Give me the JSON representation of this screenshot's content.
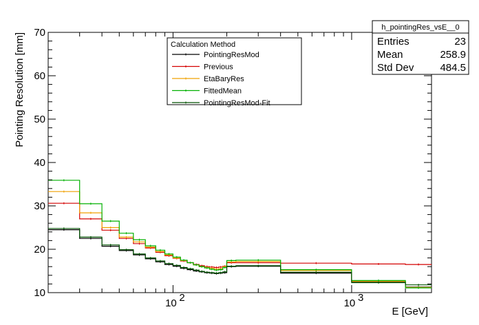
{
  "chart_data": {
    "type": "line",
    "xlabel": "E [GeV]",
    "ylabel": "Pointing Resolution [mm]",
    "xscale": "log",
    "xlim": [
      20,
      2800
    ],
    "ylim": [
      10,
      70
    ],
    "grid": false,
    "yticks": [
      "10",
      "20",
      "30",
      "40",
      "50",
      "60",
      "70"
    ],
    "xticks": [
      {
        "value": 100,
        "base": "10",
        "exp": "2"
      },
      {
        "value": 1000,
        "base": "10",
        "exp": "3"
      }
    ],
    "bin_edges": [
      20,
      30,
      40,
      50,
      60,
      70,
      80,
      90,
      100,
      110,
      120,
      130,
      140,
      150,
      160,
      170,
      180,
      190,
      200,
      225,
      400,
      1000,
      2000,
      2800
    ],
    "legend": {
      "title": "Calculation Method",
      "position": "top-center"
    },
    "series": [
      {
        "name": "PointingResMod",
        "color": "#000000",
        "values": [
          24.5,
          22.5,
          20.7,
          19.7,
          18.7,
          17.8,
          17.1,
          16.5,
          16.1,
          15.6,
          15.3,
          15.0,
          14.8,
          14.6,
          14.5,
          14.4,
          14.5,
          14.6,
          16.0,
          16.1,
          14.5,
          12.5,
          11.3
        ]
      },
      {
        "name": "Previous",
        "color": "#d40000",
        "values": [
          30.6,
          27.0,
          24.4,
          22.5,
          21.3,
          20.3,
          19.3,
          18.5,
          17.9,
          17.3,
          16.9,
          16.5,
          16.2,
          16.0,
          15.9,
          15.8,
          15.9,
          16.1,
          16.9,
          16.9,
          16.8,
          16.6,
          16.5
        ]
      },
      {
        "name": "EtaBaryRes",
        "color": "#f0a000",
        "values": [
          33.3,
          28.4,
          25.0,
          22.8,
          21.7,
          20.5,
          19.5,
          18.7,
          18.0,
          17.4,
          16.9,
          16.4,
          16.0,
          15.8,
          15.6,
          15.4,
          15.5,
          16.0,
          17.1,
          17.2,
          15.1,
          12.6,
          11.2
        ]
      },
      {
        "name": "FittedMean",
        "color": "#00b000",
        "values": [
          35.9,
          30.5,
          26.5,
          23.7,
          22.2,
          20.8,
          19.8,
          18.9,
          18.2,
          17.5,
          16.9,
          16.4,
          16.0,
          15.7,
          15.4,
          15.2,
          15.3,
          15.8,
          17.4,
          17.5,
          15.3,
          12.8,
          11.1
        ]
      },
      {
        "name": "PointingResMod-Fit",
        "color": "#005000",
        "values": [
          24.8,
          22.8,
          21.0,
          19.9,
          18.9,
          18.0,
          17.3,
          16.7,
          16.3,
          15.8,
          15.5,
          15.2,
          14.9,
          14.7,
          14.6,
          14.5,
          14.6,
          14.8,
          16.1,
          16.2,
          14.7,
          12.3,
          11.8
        ]
      }
    ],
    "stats_box": {
      "title": "h_pointingRes_vsE__0",
      "rows": [
        {
          "label": "Entries",
          "value": "23"
        },
        {
          "label": "Mean",
          "value": "258.9"
        },
        {
          "label": "Std Dev",
          "value": "484.5"
        }
      ]
    }
  }
}
